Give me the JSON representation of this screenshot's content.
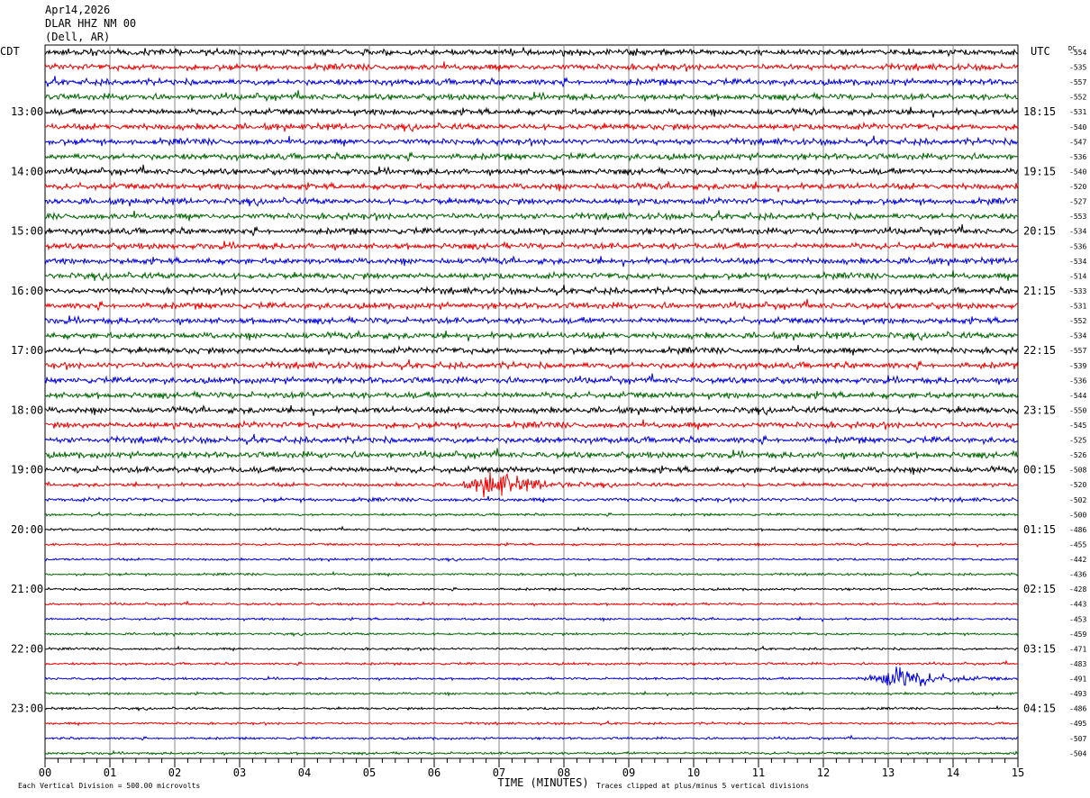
{
  "header": {
    "date": "Apr14,2026",
    "station": "DLAR HHZ NM 00",
    "location": "(Dell, AR)"
  },
  "chart_data": {
    "type": "line",
    "subtype": "helicorder",
    "left_timezone": "CDT",
    "right_timezone": "UTC",
    "dc_header": "DC",
    "xlabel": "TIME (MINUTES)",
    "x_ticks": [
      "00",
      "01",
      "02",
      "03",
      "04",
      "05",
      "06",
      "07",
      "08",
      "09",
      "10",
      "11",
      "12",
      "13",
      "14",
      "15"
    ],
    "xlim": [
      0,
      15
    ],
    "left_hour_labels": [
      "13:00",
      "14:00",
      "15:00",
      "16:00",
      "17:00",
      "18:00",
      "19:00",
      "20:00",
      "21:00",
      "22:00",
      "23:00"
    ],
    "right_hour_labels": [
      "18:15",
      "19:15",
      "20:15",
      "21:15",
      "22:15",
      "23:15",
      "00:15",
      "01:15",
      "02:15",
      "03:15",
      "04:15"
    ],
    "trace_colors": [
      "#000000",
      "#ee0000",
      "#0000dd",
      "#006600"
    ],
    "dc_offsets": [
      "-554",
      "-535",
      "-557",
      "-552",
      "-531",
      "-540",
      "-547",
      "-536",
      "-540",
      "-520",
      "-527",
      "-553",
      "-534",
      "-536",
      "-534",
      "-514",
      "-533",
      "-531",
      "-552",
      "-534",
      "-557",
      "-539",
      "-536",
      "-544",
      "-550",
      "-545",
      "-525",
      "-526",
      "-508",
      "-520",
      "-502",
      "-500",
      "-486",
      "-455",
      "-442",
      "-436",
      "-428",
      "-443",
      "-453",
      "-459",
      "-471",
      "-483",
      "-491",
      "-493",
      "-486",
      "-495",
      "-507",
      "-504"
    ],
    "footer_left": "Each Vertical Division =  500.00 microvolts",
    "footer_right": "Traces clipped at plus/minus 5 vertical divisions",
    "events": [
      {
        "trace": 29,
        "minute": 6.85,
        "amplitude": "large"
      },
      {
        "trace": 42,
        "minute": 13.05,
        "amplitude": "large"
      }
    ]
  }
}
